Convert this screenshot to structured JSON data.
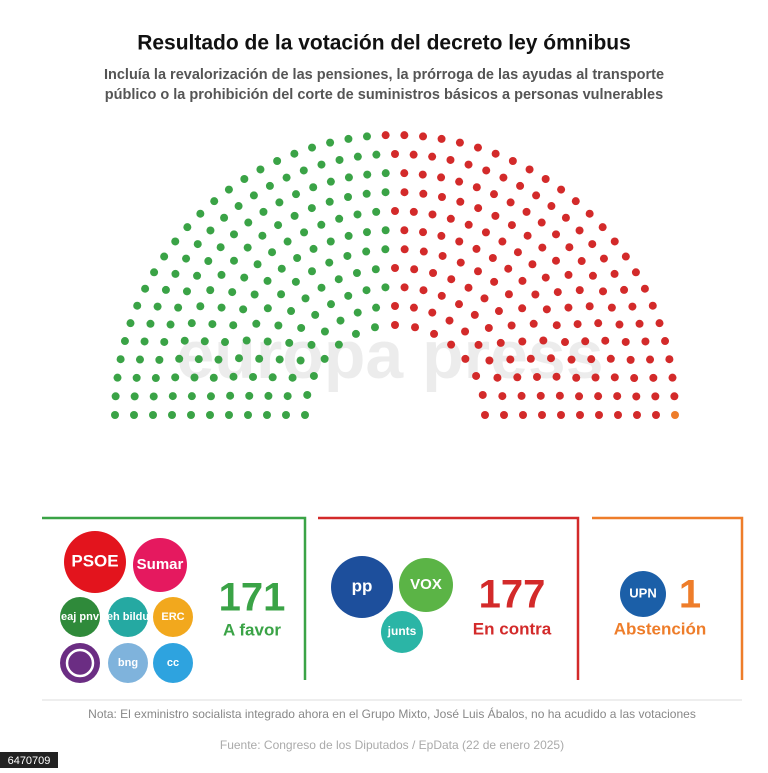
{
  "title": "Resultado de la votación del decreto ley ómnibus",
  "subtitle_lines": [
    "Incluía la revalorización de las pensiones, la prórroga de las ayudas al transporte",
    "público o la prohibición del corte de suministros básicos a personas vulnerables"
  ],
  "watermark": "europa press",
  "groups": [
    {
      "count": 171,
      "label": "A favor",
      "color": "#3aa346",
      "parties": [
        {
          "name": "PSOE",
          "color": "#e3141d"
        },
        {
          "name": "Sumar",
          "color": "#e5195f"
        },
        {
          "name": "eaj pnv",
          "color": "#2f8a3a"
        },
        {
          "name": "eh bildu",
          "color": "#25a9a2"
        },
        {
          "name": "ERC",
          "color": "#f2a81d"
        },
        {
          "color": "#6b2d83"
        },
        {
          "name": "bng",
          "color": "#7fb3dc"
        },
        {
          "name": "cc",
          "color": "#2ea3df"
        }
      ]
    },
    {
      "count": 177,
      "label": "En contra",
      "color": "#d32a2a",
      "parties": [
        {
          "name": "pp",
          "color": "#1d4f9c"
        },
        {
          "name": "VOX",
          "color": "#5bb446"
        },
        {
          "name": "junts",
          "color": "#2bb5a6"
        }
      ]
    },
    {
      "count": 1,
      "label": "Abstención",
      "color": "#ee7d2a",
      "parties": [
        {
          "name": "UPN",
          "color": "#1b5fa8"
        }
      ]
    }
  ],
  "note": "Nota: El exministro socialista integrado ahora en el Grupo Mixto, José Luis Ábalos, no ha acudido a las votaciones",
  "source": "Fuente: Congreso de los Diputados / EpData (22 de enero 2025)",
  "id": "6470709"
}
